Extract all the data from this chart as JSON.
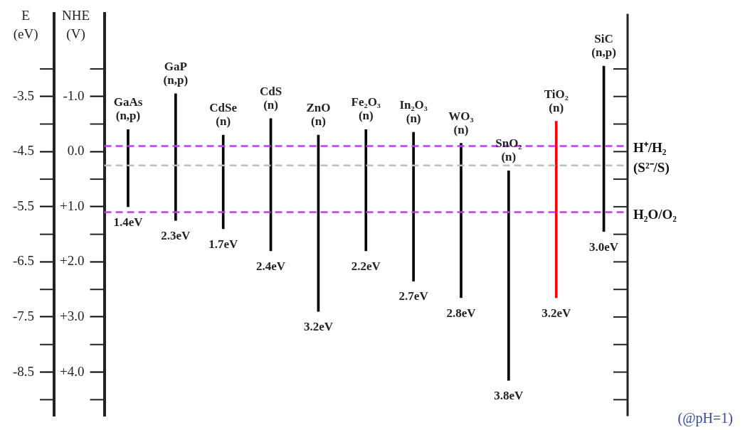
{
  "chart_data": {
    "type": "bar",
    "categories": [
      "GaAs (n,p)",
      "GaP (n,p)",
      "CdSe (n)",
      "CdS (n)",
      "ZnO (n)",
      "Fe₂O₃ (n)",
      "In₂O₃ (n)",
      "WO₃ (n)",
      "SnO₂ (n)",
      "TiO₂ (n)",
      "SiC (n,p)"
    ],
    "base": [
      -5.5,
      -5.75,
      -5.9,
      -6.3,
      -7.4,
      -6.3,
      -6.85,
      -7.15,
      -8.65,
      -7.15,
      -5.95
    ],
    "values": [
      1.4,
      2.3,
      1.7,
      2.4,
      3.2,
      2.2,
      2.7,
      2.8,
      3.8,
      3.2,
      3.0
    ],
    "value_labels": [
      "1.4eV",
      "2.3eV",
      "1.7eV",
      "2.4eV",
      "3.2eV",
      "2.2eV",
      "2.7eV",
      "2.8eV",
      "3.8eV",
      "3.2eV",
      "3.0eV"
    ],
    "colors": [
      "#000000",
      "#000000",
      "#000000",
      "#000000",
      "#000000",
      "#000000",
      "#000000",
      "#000000",
      "#000000",
      "#ff0000",
      "#000000"
    ],
    "ylabel": "E (eV)",
    "y2label": "NHE (V)",
    "ylim": [
      -9.3,
      -2.0
    ],
    "yticks": [
      -3.5,
      -4.5,
      -5.5,
      -6.5,
      -7.5,
      -8.5
    ],
    "y2lim": [
      4.8,
      -2.5
    ],
    "y2ticks": [
      {
        "value": -1.0,
        "label": "-1.0"
      },
      {
        "value": 0.0,
        "label": "0.0"
      },
      {
        "value": 1.0,
        "label": "+1.0"
      },
      {
        "value": 2.0,
        "label": "+2.0"
      },
      {
        "value": 3.0,
        "label": "+3.0"
      },
      {
        "value": 4.0,
        "label": "+4.0"
      }
    ],
    "ref_lines": [
      {
        "axis": "y",
        "value": -4.4,
        "label": "H⁺/H₂",
        "color": "#cc33ff",
        "line_style": "dashed"
      },
      {
        "axis": "y",
        "value": -4.75,
        "label": "(S²⁻/S)",
        "color": "#b0c8b4",
        "line_style": "dashed"
      },
      {
        "axis": "y",
        "value": -5.6,
        "label": "H₂O/O₂",
        "color": "#cc33ff",
        "line_style": "dashed"
      }
    ],
    "annotations": [
      "(@pH=1)"
    ]
  }
}
